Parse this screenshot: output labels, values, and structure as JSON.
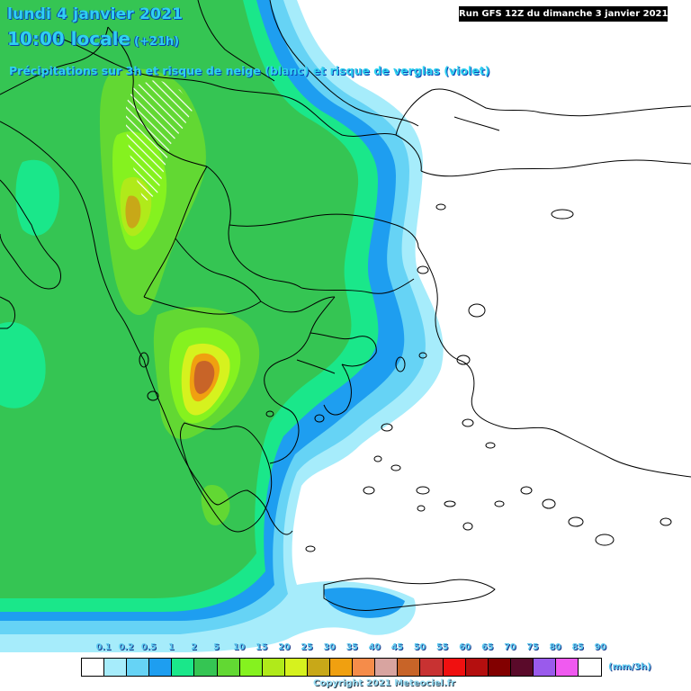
{
  "header": {
    "date_line": "lundi 4 janvier 2021",
    "time_line": "10:00 locale",
    "forecast_hour": "(+21h)",
    "subtitle": "Précipitations sur 3h et risque de neige (blanc) et risque de verglas (violet)",
    "run_info": "Run GFS 12Z du dimanche 3 janvier 2021"
  },
  "legend": {
    "unit": "(mm/3h)",
    "labels": [
      "0.1",
      "0.2",
      "0.5",
      "1",
      "2",
      "5",
      "10",
      "15",
      "20",
      "25",
      "30",
      "35",
      "40",
      "45",
      "50",
      "55",
      "60",
      "65",
      "70",
      "75",
      "80",
      "85",
      "90"
    ],
    "colors": [
      "#ffffff",
      "#a6ecfb",
      "#66d3f5",
      "#1e9ef0",
      "#1ae78a",
      "#35c553",
      "#62d833",
      "#85f21f",
      "#b0ea1a",
      "#d6f21e",
      "#c8a818",
      "#f0a010",
      "#f58c4a",
      "#d8a4a0",
      "#c86428",
      "#c83232",
      "#f01010",
      "#b40f0f",
      "#820000",
      "#5a0a2a",
      "#9a5aec",
      "#f05af0",
      "#ffffff"
    ]
  },
  "colors": {
    "sea": "#ffffff",
    "title": "#2fd0f0",
    "precip_light": "#a6ecfb",
    "precip_mid": "#1e9ef0",
    "precip_green": "#35c553",
    "precip_lime": "#85f21f",
    "precip_orange": "#c8a818",
    "precip_red": "#c86428"
  },
  "copyright": "Copyright 2021 Meteociel.fr"
}
